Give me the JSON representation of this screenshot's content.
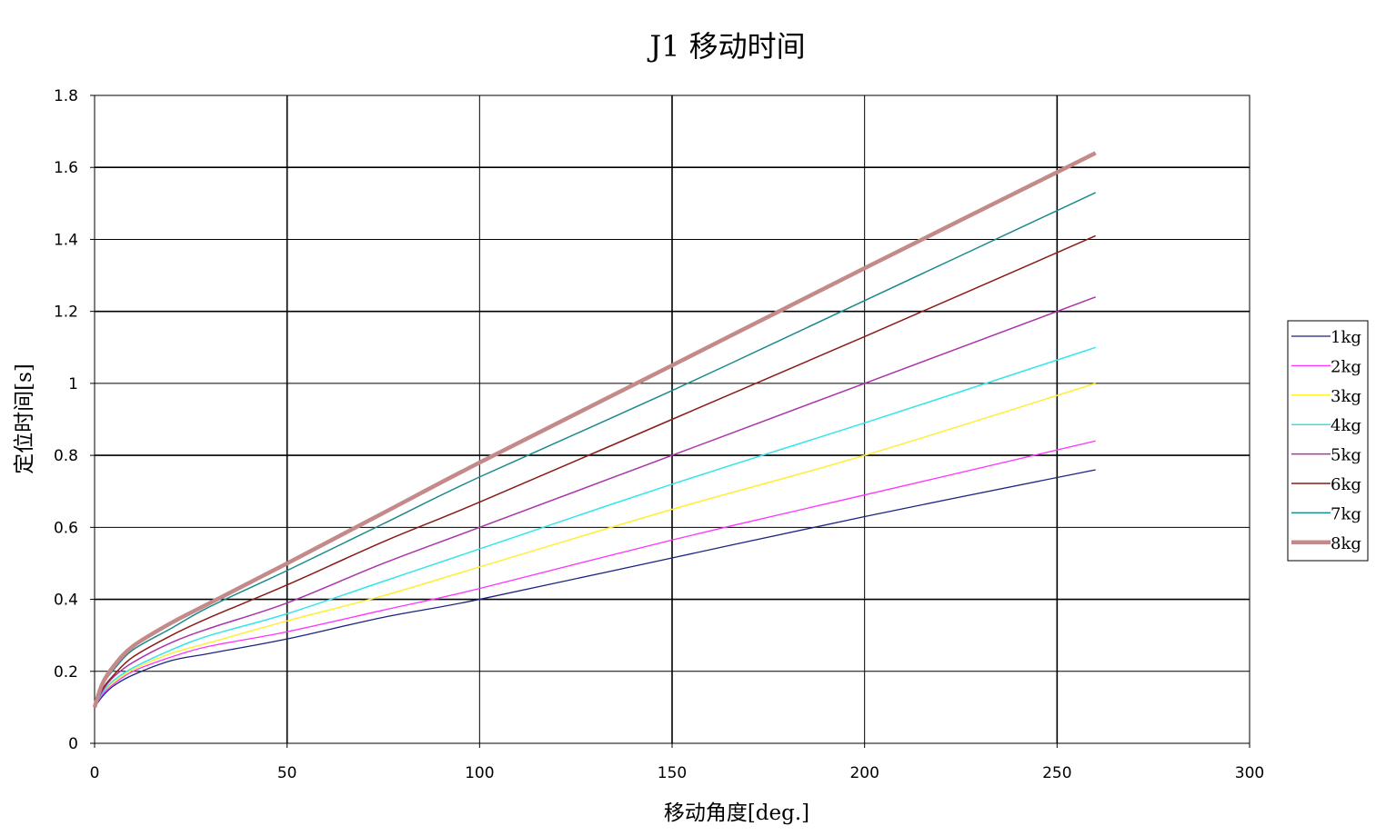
{
  "chart_data": {
    "type": "line",
    "title": "J1 移动时间",
    "xlabel": "移动角度[deg.]",
    "ylabel": "定位时间[s]",
    "xlim": [
      0,
      300
    ],
    "ylim": [
      0,
      1.8
    ],
    "x_ticks": [
      "0",
      "50",
      "100",
      "150",
      "200",
      "250",
      "300"
    ],
    "y_ticks": [
      "0",
      "0.2",
      "0.4",
      "0.6",
      "0.8",
      "1",
      "1.2",
      "1.4",
      "1.6",
      "1.8"
    ],
    "grid": true,
    "legend_position": "right",
    "x": [
      0,
      2,
      5,
      10,
      20,
      30,
      50,
      75,
      100,
      150,
      200,
      260
    ],
    "series": [
      {
        "name": "1kg",
        "color": "#1a237e",
        "line_width": 1.3,
        "values": [
          0.1,
          0.13,
          0.16,
          0.19,
          0.23,
          0.25,
          0.29,
          0.35,
          0.4,
          0.515,
          0.63,
          0.76
        ]
      },
      {
        "name": "2kg",
        "color": "#ff33ff",
        "line_width": 1.3,
        "values": [
          0.1,
          0.135,
          0.165,
          0.2,
          0.24,
          0.27,
          0.31,
          0.37,
          0.43,
          0.565,
          0.69,
          0.84
        ]
      },
      {
        "name": "3kg",
        "color": "#ffee33",
        "line_width": 1.5,
        "values": [
          0.1,
          0.14,
          0.17,
          0.205,
          0.25,
          0.28,
          0.34,
          0.41,
          0.49,
          0.65,
          0.8,
          1.0
        ]
      },
      {
        "name": "4kg",
        "color": "#33e5ea",
        "line_width": 1.5,
        "values": [
          0.1,
          0.14,
          0.175,
          0.21,
          0.26,
          0.3,
          0.36,
          0.45,
          0.54,
          0.72,
          0.89,
          1.1
        ]
      },
      {
        "name": "5kg",
        "color": "#aa33aa",
        "line_width": 1.5,
        "values": [
          0.1,
          0.145,
          0.185,
          0.225,
          0.28,
          0.32,
          0.39,
          0.5,
          0.6,
          0.8,
          1.0,
          1.24
        ]
      },
      {
        "name": "6kg",
        "color": "#8b1a1a",
        "line_width": 1.5,
        "values": [
          0.1,
          0.15,
          0.19,
          0.24,
          0.3,
          0.35,
          0.44,
          0.56,
          0.67,
          0.9,
          1.13,
          1.41
        ]
      },
      {
        "name": "7kg",
        "color": "#1a8a8a",
        "line_width": 1.5,
        "values": [
          0.1,
          0.16,
          0.205,
          0.26,
          0.32,
          0.38,
          0.48,
          0.61,
          0.74,
          0.98,
          1.23,
          1.53
        ]
      },
      {
        "name": "8kg",
        "color": "#c48a8a",
        "line_width": 4.5,
        "values": [
          0.1,
          0.165,
          0.215,
          0.27,
          0.335,
          0.39,
          0.5,
          0.64,
          0.78,
          1.05,
          1.32,
          1.64
        ]
      }
    ]
  }
}
